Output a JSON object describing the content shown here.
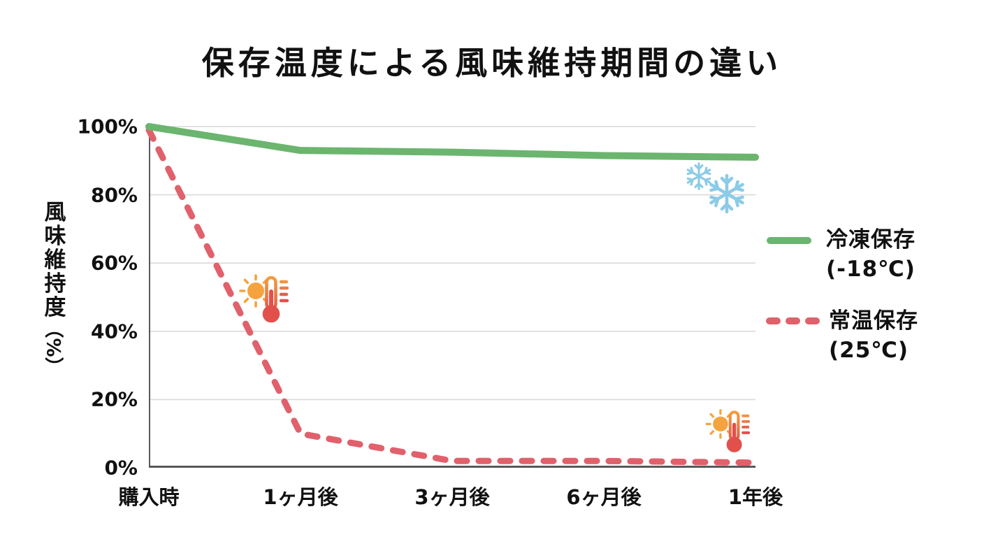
{
  "title": "保存温度による風味維持期間の違い",
  "chart_data": {
    "type": "line",
    "title": "保存温度による風味維持期間の違い",
    "categories": [
      "購入時",
      "1ヶ月後",
      "3ヶ月後",
      "6ヶ月後",
      "1年後"
    ],
    "series": [
      {
        "name": "冷凍保存 (-18℃)",
        "values": [
          100,
          93,
          92.5,
          91.5,
          91
        ],
        "color": "#6bb56f",
        "style": "solid"
      },
      {
        "name": "常温保存 (25℃)",
        "values": [
          99,
          10,
          2,
          2,
          1.5
        ],
        "color": "#e0616b",
        "style": "dashed"
      }
    ],
    "ylabel": "風味維持度（%）",
    "ylabel_chars": [
      "風",
      "味",
      "維",
      "持",
      "度"
    ],
    "ylabel_unit": "（%）",
    "ylim": [
      0,
      100
    ],
    "yticks": [
      100,
      80,
      60,
      40,
      20,
      0
    ],
    "ytick_labels": [
      "100%",
      "80%",
      "60%",
      "40%",
      "20%",
      "0%"
    ],
    "grid": "horizontal",
    "legend_position": "right"
  },
  "legend": {
    "items": [
      {
        "label": "冷凍保存",
        "sublabel": "(-18℃)"
      },
      {
        "label": "常温保存",
        "sublabel": "(25℃)"
      }
    ]
  },
  "colors": {
    "frozen_line": "#6bb56f",
    "room_line": "#e0616b",
    "grid": "#d9d9d9",
    "axis": "#595959",
    "snowflake": "#8ccbe8",
    "sun": "#f5a33f",
    "heat": "#e2504c",
    "text": "#111111"
  },
  "icons": [
    {
      "name": "snowflake-icon-small"
    },
    {
      "name": "snowflake-icon-large"
    },
    {
      "name": "sun-thermometer-icon-upper"
    },
    {
      "name": "sun-thermometer-icon-lower"
    }
  ]
}
